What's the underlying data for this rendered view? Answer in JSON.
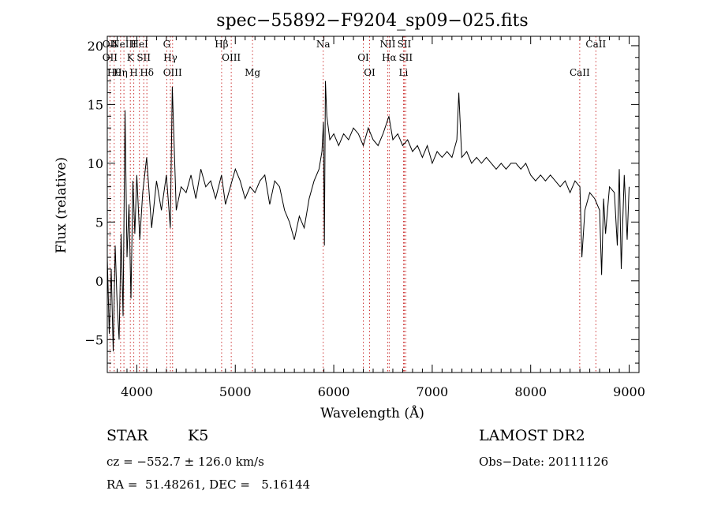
{
  "chart_data": {
    "type": "line",
    "title": "spec−55892−F9204_sp09−025.fits",
    "xlabel": "Wavelength (Å)",
    "ylabel": "Flux (relative)",
    "xlim": [
      3700,
      9100
    ],
    "ylim": [
      -7.8,
      20.8
    ],
    "xticks": [
      4000,
      5000,
      6000,
      7000,
      8000,
      9000
    ],
    "yticks": [
      -5,
      0,
      5,
      10,
      15,
      20
    ],
    "xtick_labels": [
      "4000",
      "5000",
      "6000",
      "7000",
      "8000",
      "9000"
    ],
    "ytick_labels": [
      "−5",
      "0",
      "5",
      "10",
      "15",
      "20"
    ],
    "line_color": "#000000",
    "marker_color": "#cc3333",
    "series": [
      {
        "x": [
          3700,
          3720,
          3740,
          3760,
          3780,
          3800,
          3820,
          3840,
          3860,
          3880,
          3900,
          3920,
          3940,
          3960,
          3980,
          4000,
          4030,
          4060,
          4100,
          4150,
          4200,
          4250,
          4300,
          4340,
          4360,
          4400,
          4450,
          4500,
          4550,
          4600,
          4650,
          4700,
          4750,
          4800,
          4860,
          4900,
          4950,
          5000,
          5050,
          5100,
          5150,
          5200,
          5250,
          5300,
          5350,
          5400,
          5450,
          5500,
          5550,
          5600,
          5650,
          5700,
          5750,
          5800,
          5850,
          5880,
          5895,
          5905,
          5915,
          5930,
          5960,
          6000,
          6050,
          6100,
          6150,
          6200,
          6250,
          6300,
          6350,
          6400,
          6450,
          6500,
          6560,
          6600,
          6650,
          6700,
          6750,
          6800,
          6850,
          6900,
          6950,
          7000,
          7050,
          7100,
          7150,
          7200,
          7250,
          7270,
          7300,
          7350,
          7400,
          7450,
          7500,
          7550,
          7600,
          7650,
          7700,
          7750,
          7800,
          7850,
          7900,
          7950,
          8000,
          8050,
          8100,
          8150,
          8200,
          8250,
          8300,
          8350,
          8400,
          8450,
          8500,
          8520,
          8550,
          8600,
          8650,
          8700,
          8720,
          8740,
          8760,
          8800,
          8850,
          8880,
          8900,
          8920,
          8950,
          8980,
          9000
        ],
        "y": [
          2.0,
          -4.5,
          1.0,
          -6.0,
          3.0,
          -2.0,
          -5.0,
          4.0,
          -3.0,
          14.5,
          2.0,
          6.5,
          -1.5,
          8.5,
          4.0,
          9.0,
          3.5,
          7.5,
          10.5,
          4.5,
          8.5,
          6.0,
          9.0,
          4.5,
          16.5,
          6.0,
          8.0,
          7.5,
          9.0,
          7.0,
          9.5,
          8.0,
          8.5,
          7.0,
          9.0,
          6.5,
          8.0,
          9.5,
          8.5,
          7.0,
          8.0,
          7.5,
          8.5,
          9.0,
          6.5,
          8.5,
          8.0,
          6.0,
          5.0,
          3.5,
          5.5,
          4.5,
          7.0,
          8.5,
          9.5,
          11.0,
          13.5,
          3.0,
          17.0,
          14.0,
          12.0,
          12.5,
          11.5,
          12.5,
          12.0,
          13.0,
          12.5,
          11.5,
          13.0,
          12.0,
          11.5,
          12.5,
          14.0,
          12.0,
          12.5,
          11.5,
          12.0,
          11.0,
          11.5,
          10.5,
          11.5,
          10.0,
          11.0,
          10.5,
          11.0,
          10.5,
          12.0,
          16.0,
          10.5,
          11.0,
          10.0,
          10.5,
          10.0,
          10.5,
          10.0,
          9.5,
          10.0,
          9.5,
          10.0,
          10.0,
          9.5,
          10.0,
          9.0,
          8.5,
          9.0,
          8.5,
          9.0,
          8.5,
          8.0,
          8.5,
          7.5,
          8.5,
          8.0,
          2.0,
          6.0,
          7.5,
          7.0,
          6.0,
          0.5,
          7.0,
          4.0,
          8.0,
          7.5,
          3.0,
          9.5,
          1.0,
          9.0,
          3.5,
          8.0
        ]
      }
    ],
    "lines": [
      {
        "x": 3727,
        "labels": [
          "OII",
          "OII"
        ]
      },
      {
        "x": 3770,
        "labels": [
          "Hθ"
        ]
      },
      {
        "x": 3835,
        "labels": [
          "Hη"
        ]
      },
      {
        "x": 3869,
        "labels": [
          "NeIII"
        ]
      },
      {
        "x": 3934,
        "labels": [
          "K"
        ]
      },
      {
        "x": 3969,
        "labels": [
          "H"
        ]
      },
      {
        "x": 4026,
        "labels": [
          "HeI"
        ]
      },
      {
        "x": 4070,
        "labels": [
          "SII"
        ]
      },
      {
        "x": 4102,
        "labels": [
          "Hδ"
        ]
      },
      {
        "x": 4304,
        "labels": [
          "G"
        ]
      },
      {
        "x": 4341,
        "labels": [
          "Hγ"
        ]
      },
      {
        "x": 4363,
        "labels": [
          "OIII"
        ]
      },
      {
        "x": 4861,
        "labels": [
          "Hβ"
        ]
      },
      {
        "x": 4959,
        "labels": [
          "OIII"
        ]
      },
      {
        "x": 5175,
        "labels": [
          "Mg"
        ]
      },
      {
        "x": 5893,
        "labels": [
          "Na"
        ]
      },
      {
        "x": 6300,
        "labels": [
          "OI"
        ]
      },
      {
        "x": 6364,
        "labels": [
          "OI"
        ]
      },
      {
        "x": 6548,
        "labels": [
          "NII"
        ]
      },
      {
        "x": 6563,
        "labels": [
          "Hα"
        ]
      },
      {
        "x": 6708,
        "labels": [
          "Li"
        ]
      },
      {
        "x": 6716,
        "labels": [
          "SII"
        ]
      },
      {
        "x": 6731,
        "labels": [
          "SII"
        ]
      },
      {
        "x": 8498,
        "labels": [
          "CaII"
        ]
      },
      {
        "x": 8662,
        "labels": [
          "CaII"
        ]
      }
    ]
  },
  "info": {
    "class": "STAR",
    "subclass": "K5",
    "survey": "LAMOST DR2",
    "cz": "cz = −552.7 ± 126.0 km/s",
    "obsdate": "Obs−Date: 20111126",
    "coords": "RA =  51.48261, DEC =   5.16144"
  }
}
